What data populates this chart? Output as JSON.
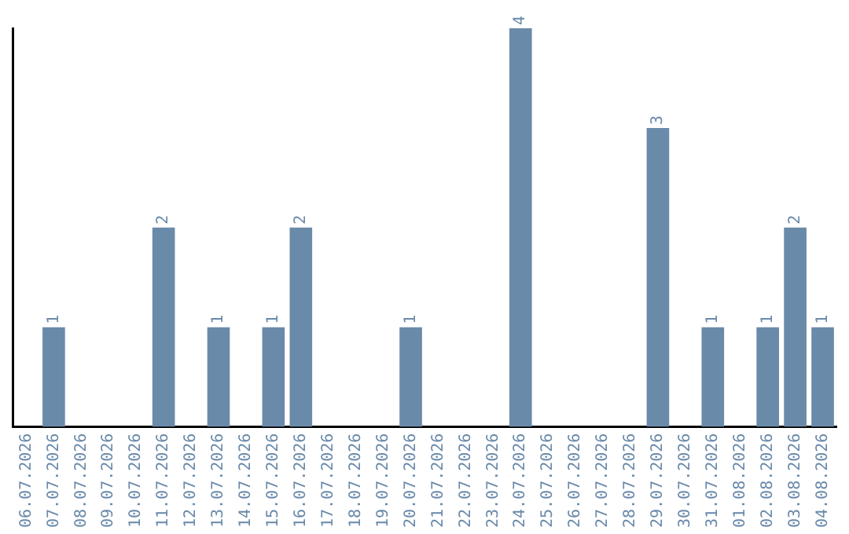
{
  "chart_data": {
    "type": "bar",
    "categories": [
      "06.07.2026",
      "07.07.2026",
      "08.07.2026",
      "09.07.2026",
      "10.07.2026",
      "11.07.2026",
      "12.07.2026",
      "13.07.2026",
      "14.07.2026",
      "15.07.2026",
      "16.07.2026",
      "17.07.2026",
      "18.07.2026",
      "19.07.2026",
      "20.07.2026",
      "21.07.2026",
      "22.07.2026",
      "23.07.2026",
      "24.07.2026",
      "25.07.2026",
      "26.07.2026",
      "27.07.2026",
      "28.07.2026",
      "29.07.2026",
      "30.07.2026",
      "31.07.2026",
      "01.08.2026",
      "02.08.2026",
      "03.08.2026",
      "04.08.2026"
    ],
    "values": [
      0,
      1,
      0,
      0,
      0,
      2,
      0,
      1,
      0,
      1,
      2,
      0,
      0,
      0,
      1,
      0,
      0,
      0,
      4,
      0,
      0,
      0,
      0,
      3,
      0,
      1,
      0,
      1,
      2,
      1
    ],
    "value_labels": [
      null,
      "1",
      null,
      null,
      null,
      "2",
      null,
      "1",
      null,
      "1",
      "2",
      null,
      null,
      null,
      "1",
      null,
      null,
      null,
      "4",
      null,
      null,
      null,
      null,
      "3",
      null,
      "1",
      null,
      "1",
      "2",
      "1"
    ],
    "color": "#6a8aaa",
    "tick_labels": "x",
    "grid": false,
    "legend": false
  }
}
